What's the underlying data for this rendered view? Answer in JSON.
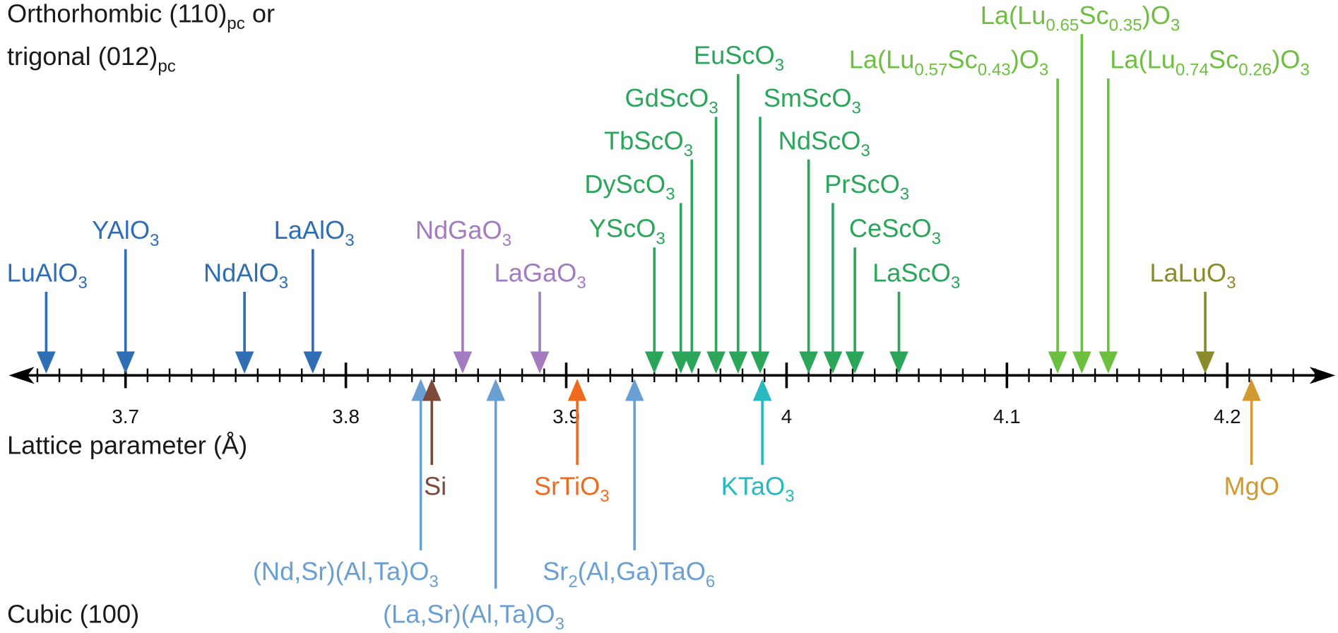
{
  "chart_data": {
    "type": "number-line",
    "top_title": [
      [
        "Orthorhombic (110)",
        "pc",
        " or"
      ],
      [
        "trigonal (012)",
        "pc"
      ]
    ],
    "axis_label": "Lattice parameter (Å)",
    "bottom_title": "Cubic (100)",
    "xlim": [
      3.647,
      4.249
    ],
    "xticks": [
      3.7,
      3.8,
      3.9,
      4.0,
      4.1,
      4.2
    ],
    "xticks_minor": [
      3.66,
      3.67,
      3.68,
      3.69,
      3.71,
      3.72,
      3.73,
      3.74,
      3.75,
      3.76,
      3.77,
      3.78,
      3.79,
      3.81,
      3.82,
      3.83,
      3.84,
      3.85,
      3.86,
      3.87,
      3.88,
      3.89,
      3.91,
      3.92,
      3.93,
      3.94,
      3.95,
      3.96,
      3.97,
      3.98,
      3.99,
      4.01,
      4.02,
      4.03,
      4.04,
      4.05,
      4.06,
      4.07,
      4.08,
      4.09,
      4.11,
      4.12,
      4.13,
      4.14,
      4.15,
      4.16,
      4.17,
      4.18,
      4.19,
      4.21,
      4.22,
      4.23,
      4.24
    ],
    "top": [
      {
        "label": [
          "LuAlO",
          "3"
        ],
        "value": 3.664,
        "color": "#2f6db5"
      },
      {
        "label": [
          "YAlO",
          "3"
        ],
        "value": 3.7,
        "color": "#2f6db5"
      },
      {
        "label": [
          "NdAlO",
          "3"
        ],
        "value": 3.754,
        "color": "#2f6db5"
      },
      {
        "label": [
          "LaAlO",
          "3"
        ],
        "value": 3.785,
        "color": "#2f6db5"
      },
      {
        "label": [
          "NdGaO",
          "3"
        ],
        "value": 3.853,
        "color": "#a27bc0"
      },
      {
        "label": [
          "LaGaO",
          "3"
        ],
        "value": 3.888,
        "color": "#a27bc0"
      },
      {
        "label": [
          "YScO",
          "3"
        ],
        "value": 3.94,
        "color": "#2aa55a"
      },
      {
        "label": [
          "DyScO",
          "3"
        ],
        "value": 3.952,
        "color": "#2aa55a"
      },
      {
        "label": [
          "TbScO",
          "3"
        ],
        "value": 3.957,
        "color": "#2aa55a"
      },
      {
        "label": [
          "GdScO",
          "3"
        ],
        "value": 3.968,
        "color": "#2aa55a"
      },
      {
        "label": [
          "EuScO",
          "3"
        ],
        "value": 3.978,
        "color": "#2aa55a"
      },
      {
        "label": [
          "SmScO",
          "3"
        ],
        "value": 3.988,
        "color": "#2aa55a"
      },
      {
        "label": [
          "NdScO",
          "3"
        ],
        "value": 4.01,
        "color": "#2aa55a"
      },
      {
        "label": [
          "PrScO",
          "3"
        ],
        "value": 4.021,
        "color": "#2aa55a"
      },
      {
        "label": [
          "CeScO",
          "3"
        ],
        "value": 4.031,
        "color": "#2aa55a"
      },
      {
        "label": [
          "LaScO",
          "3"
        ],
        "value": 4.051,
        "color": "#2aa55a"
      },
      {
        "label": [
          "La(Lu",
          "0.57",
          "Sc",
          "0.43",
          ")O",
          "3"
        ],
        "value": 4.123,
        "color": "#6cbf3f"
      },
      {
        "label": [
          "La(Lu",
          "0.65",
          "Sc",
          "0.35",
          ")O",
          "3"
        ],
        "value": 4.134,
        "color": "#6cbf3f"
      },
      {
        "label": [
          "La(Lu",
          "0.74",
          "Sc",
          "0.26",
          ")O",
          "3"
        ],
        "value": 4.146,
        "color": "#6cbf3f"
      },
      {
        "label": [
          "LaLuO",
          "3"
        ],
        "value": 4.19,
        "color": "#8a8a2a"
      }
    ],
    "bottom": [
      {
        "label": [
          "(Nd,Sr)(Al,Ta)O",
          "3"
        ],
        "value": 3.834,
        "color": "#6a9fd4"
      },
      {
        "label": [
          "Si"
        ],
        "value": 3.839,
        "color": "#7b4a3a"
      },
      {
        "label": [
          "(La,Sr)(Al,Ta)O",
          "3"
        ],
        "value": 3.868,
        "color": "#6a9fd4"
      },
      {
        "label": [
          "SrTiO",
          "3"
        ],
        "value": 3.905,
        "color": "#f06a1e"
      },
      {
        "label": [
          "Sr",
          "2",
          "(Al,Ga)TaO",
          "6"
        ],
        "value": 3.931,
        "color": "#6a9fd4"
      },
      {
        "label": [
          "KTaO",
          "3"
        ],
        "value": 3.989,
        "color": "#28b8c0"
      },
      {
        "label": [
          "MgO"
        ],
        "value": 4.211,
        "color": "#d09a30"
      }
    ]
  }
}
